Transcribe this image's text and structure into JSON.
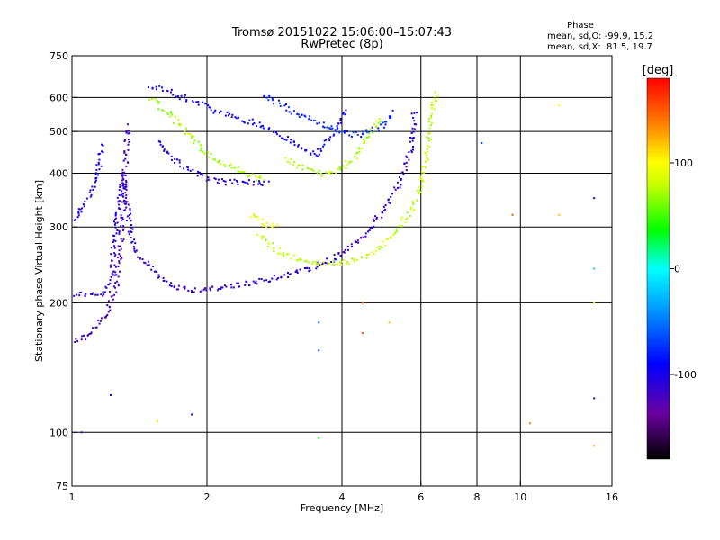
{
  "chart_data": {
    "type": "scatter",
    "title": "Tromsø 20151022 15:06:00–15:07:43",
    "subtitle": "RwPretec (8p)",
    "xlabel": "Frequency [MHz]",
    "ylabel": "Stationary phase Virtual Height [km]",
    "x_scale": "log",
    "y_scale": "log",
    "xlim": [
      1,
      16
    ],
    "ylim": [
      75,
      750
    ],
    "x_ticks": [
      1,
      2,
      4,
      6,
      8,
      10,
      16
    ],
    "x_tick_labels": [
      "1",
      "2",
      "4",
      "6",
      "8",
      "10",
      "16"
    ],
    "x_grid": [
      2,
      4,
      6,
      8,
      10
    ],
    "y_ticks": [
      75,
      100,
      200,
      300,
      400,
      500,
      600,
      750
    ],
    "y_tick_labels": [
      "75",
      "100",
      "200",
      "300",
      "400",
      "500",
      "600",
      "750"
    ],
    "y_grid": [
      100,
      200,
      300,
      400,
      500,
      600
    ],
    "grid": true,
    "legend_placement": "top-right",
    "phase_stats": {
      "header": "Phase",
      "line_o": "mean, sd,O: -99.9, 15.2",
      "line_x": "mean, sd,X:  81.5, 19.7"
    },
    "colorbar": {
      "label": "[deg]",
      "range": [
        -180,
        180
      ],
      "ticks": [
        100,
        0,
        -100
      ],
      "tick_labels": [
        "100",
        "0",
        "-100"
      ]
    },
    "traces": [
      {
        "mode": "O",
        "phase_deg": -110,
        "points": [
          [
            1.0,
            210
          ],
          [
            1.08,
            209
          ],
          [
            1.15,
            208
          ],
          [
            1.2,
            212
          ],
          [
            1.23,
            240
          ],
          [
            1.25,
            290
          ],
          [
            1.27,
            350
          ],
          [
            1.3,
            400
          ],
          [
            1.33,
            330
          ],
          [
            1.36,
            280
          ],
          [
            1.4,
            260
          ],
          [
            1.5,
            240
          ],
          [
            1.6,
            226
          ],
          [
            1.7,
            218
          ],
          [
            1.8,
            215
          ],
          [
            2.0,
            214
          ],
          [
            2.2,
            218
          ],
          [
            2.5,
            222
          ],
          [
            3.0,
            232
          ],
          [
            3.4,
            240
          ],
          [
            3.6,
            246
          ],
          [
            3.9,
            255
          ],
          [
            4.2,
            270
          ],
          [
            4.6,
            295
          ],
          [
            5.0,
            330
          ],
          [
            5.3,
            370
          ],
          [
            5.5,
            400
          ],
          [
            5.65,
            440
          ],
          [
            5.75,
            490
          ],
          [
            5.8,
            560
          ]
        ]
      },
      {
        "mode": "O",
        "phase_deg": -120,
        "points": [
          [
            1.0,
            160
          ],
          [
            1.05,
            165
          ],
          [
            1.1,
            170
          ],
          [
            1.15,
            180
          ],
          [
            1.2,
            190
          ],
          [
            1.25,
            215
          ],
          [
            1.28,
            260
          ],
          [
            1.3,
            320
          ],
          [
            1.31,
            380
          ],
          [
            1.32,
            440
          ],
          [
            1.33,
            520
          ]
        ]
      },
      {
        "mode": "O",
        "phase_deg": -100,
        "points": [
          [
            1.02,
            310
          ],
          [
            1.05,
            330
          ],
          [
            1.08,
            345
          ],
          [
            1.1,
            360
          ],
          [
            1.12,
            380
          ],
          [
            1.15,
            420
          ],
          [
            1.17,
            470
          ]
        ]
      },
      {
        "mode": "O",
        "phase_deg": -105,
        "points": [
          [
            1.55,
            480
          ],
          [
            1.65,
            440
          ],
          [
            1.8,
            410
          ],
          [
            2.0,
            390
          ],
          [
            2.2,
            380
          ],
          [
            2.4,
            382
          ],
          [
            2.6,
            380
          ],
          [
            2.75,
            378
          ]
        ]
      },
      {
        "mode": "O",
        "phase_deg": -95,
        "points": [
          [
            1.5,
            640
          ],
          [
            1.7,
            610
          ],
          [
            2.0,
            570
          ],
          [
            2.3,
            540
          ],
          [
            2.6,
            520
          ],
          [
            2.8,
            500
          ],
          [
            3.0,
            480
          ],
          [
            3.2,
            460
          ],
          [
            3.5,
            440
          ],
          [
            3.7,
            470
          ],
          [
            3.9,
            520
          ],
          [
            4.1,
            560
          ]
        ]
      },
      {
        "mode": "O",
        "phase_deg": -80,
        "points": [
          [
            2.7,
            600
          ],
          [
            2.9,
            580
          ],
          [
            3.1,
            560
          ],
          [
            3.3,
            540
          ],
          [
            3.6,
            520
          ],
          [
            3.8,
            510
          ],
          [
            4.0,
            500
          ],
          [
            4.3,
            490
          ],
          [
            4.6,
            500
          ],
          [
            5.0,
            520
          ],
          [
            5.2,
            560
          ]
        ]
      },
      {
        "mode": "X",
        "phase_deg": 70,
        "points": [
          [
            1.5,
            600
          ],
          [
            1.7,
            530
          ],
          [
            1.9,
            470
          ],
          [
            2.1,
            430
          ],
          [
            2.4,
            400
          ],
          [
            2.7,
            385
          ]
        ]
      },
      {
        "mode": "X",
        "phase_deg": 80,
        "points": [
          [
            2.6,
            290
          ],
          [
            2.8,
            270
          ],
          [
            3.0,
            258
          ],
          [
            3.3,
            250
          ],
          [
            3.7,
            247
          ],
          [
            4.2,
            250
          ],
          [
            4.7,
            262
          ],
          [
            5.2,
            285
          ],
          [
            5.7,
            330
          ],
          [
            6.0,
            380
          ],
          [
            6.2,
            450
          ],
          [
            6.35,
            550
          ],
          [
            6.5,
            630
          ]
        ]
      },
      {
        "mode": "X",
        "phase_deg": 75,
        "points": [
          [
            3.0,
            430
          ],
          [
            3.3,
            410
          ],
          [
            3.6,
            398
          ],
          [
            4.0,
            410
          ],
          [
            4.3,
            440
          ],
          [
            4.6,
            490
          ],
          [
            4.9,
            540
          ]
        ]
      },
      {
        "mode": "X",
        "phase_deg": 90,
        "points": [
          [
            2.5,
            320
          ],
          [
            2.7,
            305
          ],
          [
            2.9,
            300
          ]
        ]
      }
    ],
    "scatter_extra": [
      {
        "x": 1.05,
        "y": 100,
        "phase_deg": -110
      },
      {
        "x": 1.22,
        "y": 122,
        "phase_deg": -100
      },
      {
        "x": 1.85,
        "y": 110,
        "phase_deg": -110
      },
      {
        "x": 1.55,
        "y": 106,
        "phase_deg": 110
      },
      {
        "x": 3.55,
        "y": 155,
        "phase_deg": -60
      },
      {
        "x": 3.55,
        "y": 180,
        "phase_deg": -50
      },
      {
        "x": 4.45,
        "y": 200,
        "phase_deg": 150
      },
      {
        "x": 4.45,
        "y": 170,
        "phase_deg": 160
      },
      {
        "x": 5.1,
        "y": 180,
        "phase_deg": 120
      },
      {
        "x": 8.2,
        "y": 470,
        "phase_deg": -60
      },
      {
        "x": 9.6,
        "y": 320,
        "phase_deg": 150
      },
      {
        "x": 10.5,
        "y": 105,
        "phase_deg": 140
      },
      {
        "x": 12.2,
        "y": 575,
        "phase_deg": 100
      },
      {
        "x": 12.2,
        "y": 320,
        "phase_deg": 120
      },
      {
        "x": 14.6,
        "y": 350,
        "phase_deg": -90
      },
      {
        "x": 14.6,
        "y": 240,
        "phase_deg": -20
      },
      {
        "x": 14.6,
        "y": 200,
        "phase_deg": 90
      },
      {
        "x": 14.6,
        "y": 120,
        "phase_deg": -90
      },
      {
        "x": 14.6,
        "y": 93,
        "phase_deg": 130
      },
      {
        "x": 3.55,
        "y": 97,
        "phase_deg": 40
      }
    ]
  }
}
